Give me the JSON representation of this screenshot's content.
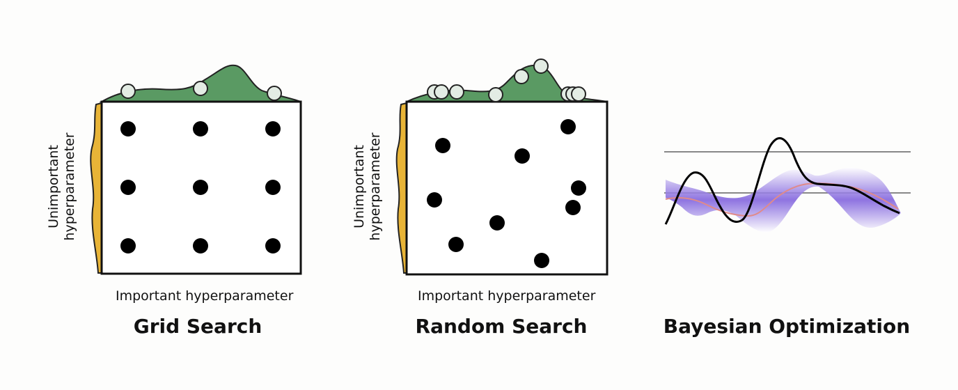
{
  "grid_panel": {
    "caption": "Grid Search",
    "xlabel": "Important hyperparameter",
    "ylabel_line1": "Unimportant",
    "ylabel_line2": "hyperparameter"
  },
  "random_panel": {
    "caption": "Random Search",
    "xlabel": "Important hyperparameter",
    "ylabel_line1": "Unimportant",
    "ylabel_line2": "hyperparameter"
  },
  "bayes_panel": {
    "caption": "Bayesian Optimization"
  },
  "colors": {
    "top_density_fill": "#5a9a63",
    "side_density_fill": "#e8b437",
    "sample_point": "#000000",
    "projection_marker_fill": "#e3ece4",
    "uncertainty_band": "#8a6ae0",
    "mean_line": "#e08a8a",
    "true_function": "#000000",
    "reference_line": "#888888"
  }
}
